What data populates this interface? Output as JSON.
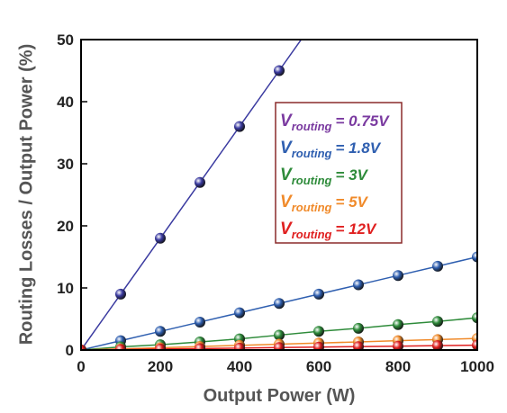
{
  "chart_data": {
    "type": "line",
    "xlabel": "Output Power (W)",
    "ylabel": "Routing Losses / Output Power (%)",
    "x": [
      0,
      100,
      200,
      300,
      400,
      500,
      600,
      700,
      800,
      900,
      1000
    ],
    "xlim": [
      0,
      1000
    ],
    "xticks": [
      0,
      200,
      400,
      600,
      800,
      1000
    ],
    "ylim": [
      0,
      50
    ],
    "yticks": [
      0,
      10,
      20,
      30,
      40,
      50
    ],
    "legend_symbol": "V",
    "legend_subscript": "routing",
    "series": [
      {
        "name": "= 0.75V",
        "color": "#3a3aa0",
        "label_color": "#7a3aa0",
        "values": [
          0,
          9,
          18,
          27,
          36,
          45,
          null,
          null,
          null,
          null,
          null
        ]
      },
      {
        "name": "=  1.8V",
        "color": "#2f5fb0",
        "label_color": "#2f5fb0",
        "values": [
          0,
          1.5,
          3,
          4.5,
          6,
          7.5,
          9,
          10.5,
          12,
          13.5,
          15
        ]
      },
      {
        "name": "=  3V",
        "color": "#2e8b3a",
        "label_color": "#2e8b3a",
        "values": [
          0,
          0.5,
          0.85,
          1.3,
          1.8,
          2.4,
          3.0,
          3.5,
          4.1,
          4.6,
          5.2
        ]
      },
      {
        "name": "= 5V",
        "color": "#f08a2a",
        "label_color": "#f08a2a",
        "values": [
          0,
          0.19,
          0.37,
          0.56,
          0.75,
          0.94,
          1.12,
          1.31,
          1.5,
          1.69,
          1.87
        ]
      },
      {
        "name": "= 12V",
        "color": "#e02020",
        "label_color": "#e02020",
        "values": [
          0,
          0.08,
          0.16,
          0.23,
          0.31,
          0.39,
          0.47,
          0.55,
          0.62,
          0.7,
          0.78
        ]
      }
    ]
  }
}
